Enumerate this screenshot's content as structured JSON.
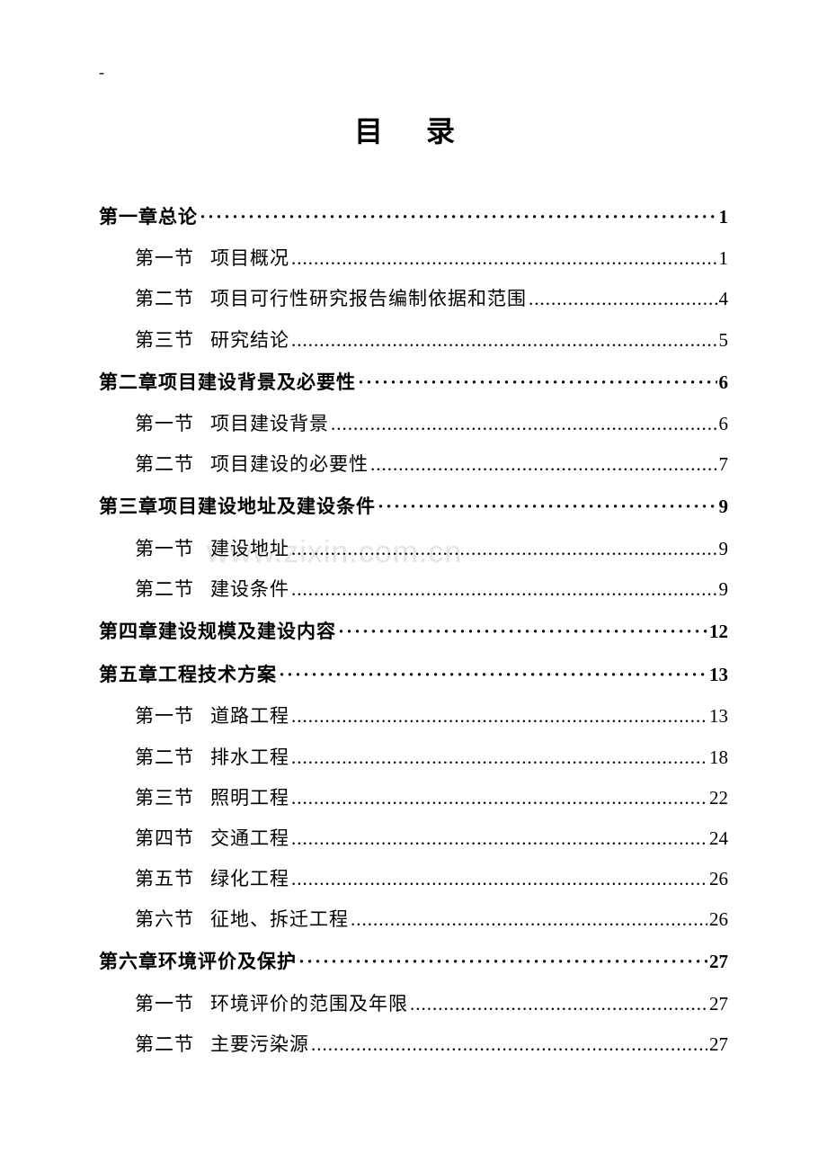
{
  "header_mark": "-",
  "title": "目  录",
  "watermark": "www.zixin.com.cn",
  "chapter_leader_char": "·",
  "section_leader_char": ".",
  "toc": [
    {
      "type": "chapter",
      "label": "第一章",
      "text": "总论",
      "page": "1"
    },
    {
      "type": "section",
      "label": "第一节",
      "text": "项目概况",
      "page": "1"
    },
    {
      "type": "section",
      "label": "第二节",
      "text": "项目可行性研究报告编制依据和范围",
      "page": "4"
    },
    {
      "type": "section",
      "label": "第三节",
      "text": "研究结论",
      "page": "5"
    },
    {
      "type": "chapter",
      "label": "第二章",
      "text": "项目建设背景及必要性",
      "page": "6"
    },
    {
      "type": "section",
      "label": "第一节",
      "text": "项目建设背景",
      "page": "6"
    },
    {
      "type": "section",
      "label": "第二节",
      "text": "项目建设的必要性",
      "page": "7"
    },
    {
      "type": "chapter",
      "label": "第三章",
      "text": "项目建设地址及建设条件",
      "page": "9"
    },
    {
      "type": "section",
      "label": "第一节",
      "text": "建设地址",
      "page": "9"
    },
    {
      "type": "section",
      "label": "第二节",
      "text": "建设条件",
      "page": "9"
    },
    {
      "type": "chapter",
      "label": "第四章",
      "text": "建设规模及建设内容",
      "page": "12"
    },
    {
      "type": "chapter",
      "label": "第五章",
      "text": "工程技术方案",
      "page": "13"
    },
    {
      "type": "section",
      "label": "第一节",
      "text": "道路工程",
      "page": "13"
    },
    {
      "type": "section",
      "label": "第二节",
      "text": "排水工程",
      "page": "18"
    },
    {
      "type": "section",
      "label": "第三节",
      "text": "照明工程",
      "page": "22"
    },
    {
      "type": "section",
      "label": "第四节",
      "text": "交通工程",
      "page": "24"
    },
    {
      "type": "section",
      "label": "第五节",
      "text": "绿化工程",
      "page": "26"
    },
    {
      "type": "section",
      "label": "第六节",
      "text": "征地、拆迁工程",
      "page": "26"
    },
    {
      "type": "chapter",
      "label": "第六章",
      "text": "环境评价及保护",
      "page": "27"
    },
    {
      "type": "section",
      "label": "第一节",
      "text": "环境评价的范围及年限",
      "page": "27"
    },
    {
      "type": "section",
      "label": "第二节",
      "text": "主要污染源",
      "page": "27"
    }
  ]
}
